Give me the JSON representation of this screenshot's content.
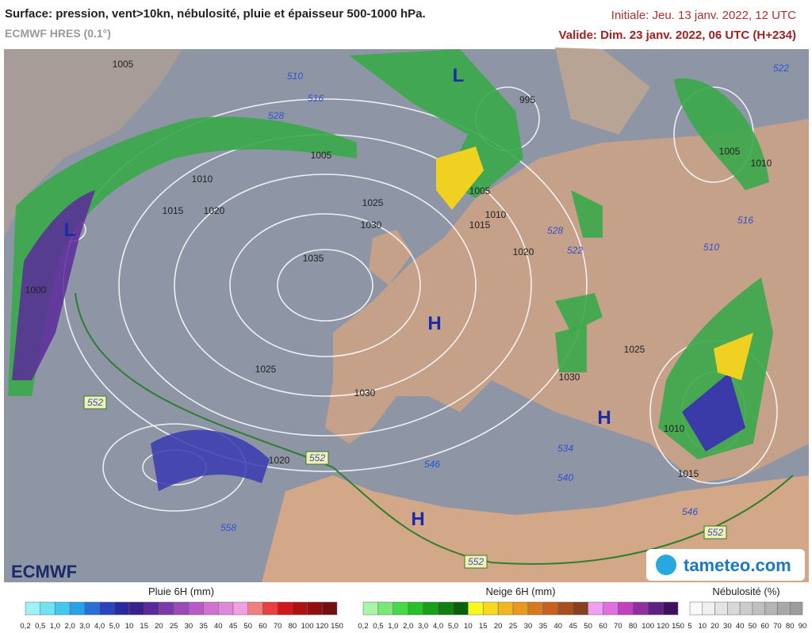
{
  "header": {
    "title": "Surface: pression, vent>10kn, nébulosité, pluie et épaisseur 500-1000 hPa.",
    "model": "ECMWF HRES (0.1°)",
    "init": "Initiale: Jeu. 13 janv. 2022, 12 UTC",
    "valid": "Valide: Dim. 23 janv. 2022, 06 UTC (H+234)"
  },
  "map": {
    "isobar_labels": [
      "1005",
      "1005",
      "1010",
      "1015",
      "1020",
      "1025",
      "1030",
      "1035",
      "1025",
      "1030",
      "1020",
      "1000",
      "995",
      "1005",
      "1010",
      "1015",
      "1020",
      "1025",
      "1030",
      "1010",
      "1015",
      "1005",
      "1010"
    ],
    "thickness_labels": [
      "510",
      "516",
      "528",
      "552",
      "552",
      "552",
      "552",
      "546",
      "540",
      "534",
      "546",
      "558",
      "522",
      "516",
      "510",
      "528",
      "522"
    ],
    "centers": [
      "L",
      "L",
      "H",
      "H",
      "H"
    ]
  },
  "legends": [
    {
      "title": "Pluie 6H (mm)",
      "ticks": [
        "0,2",
        "0,5",
        "1,0",
        "2,0",
        "3,0",
        "4,0",
        "5,0",
        "10",
        "15",
        "20",
        "25",
        "30",
        "35",
        "40",
        "45",
        "50",
        "60",
        "70",
        "80",
        "100",
        "120",
        "150"
      ],
      "colors": [
        "#9ff0f7",
        "#6fe3f5",
        "#45c8f0",
        "#2aa0e8",
        "#2a6fd8",
        "#2b45c0",
        "#2a2aa0",
        "#3b1f8a",
        "#5a2a9a",
        "#7a3aa8",
        "#9a4ab8",
        "#b85ac8",
        "#d070d0",
        "#e088d8",
        "#f0a0e0",
        "#f08080",
        "#e84040",
        "#d01818",
        "#b01010",
        "#901010",
        "#701010"
      ]
    },
    {
      "title": "Neige 6H (mm)",
      "ticks": [
        "0,2",
        "0,5",
        "1,0",
        "2,0",
        "3,0",
        "4,0",
        "5,0",
        "10",
        "15",
        "20",
        "25",
        "30",
        "35",
        "40",
        "45",
        "50",
        "60",
        "70",
        "80",
        "100",
        "120",
        "150"
      ],
      "colors": [
        "#a8f5a8",
        "#78e878",
        "#48d848",
        "#28c028",
        "#18a018",
        "#108010",
        "#086008",
        "#f8f820",
        "#f8d820",
        "#f0b820",
        "#e89820",
        "#d87820",
        "#c86020",
        "#a85020",
        "#884020",
        "#f0a0f0",
        "#e070e0",
        "#c040c0",
        "#9030a0",
        "#602080",
        "#401060"
      ]
    },
    {
      "title": "Nébulosité (%)",
      "ticks": [
        "5",
        "10",
        "20",
        "30",
        "40",
        "50",
        "60",
        "70",
        "80",
        "90"
      ],
      "colors": [
        "#fafafa",
        "#f0f0f0",
        "#e4e4e4",
        "#d8d8d8",
        "#cccccc",
        "#c0c0c0",
        "#b4b4b4",
        "#a8a8a8",
        "#9c9c9c"
      ]
    }
  ],
  "logos": {
    "left": "ECMWF",
    "right": "tameteo.com"
  }
}
